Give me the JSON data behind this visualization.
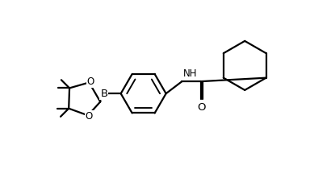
{
  "background": "#ffffff",
  "line_color": "#000000",
  "line_width": 1.6,
  "font_size": 8.5,
  "xlim": [
    0,
    10
  ],
  "ylim": [
    0,
    6.5
  ]
}
